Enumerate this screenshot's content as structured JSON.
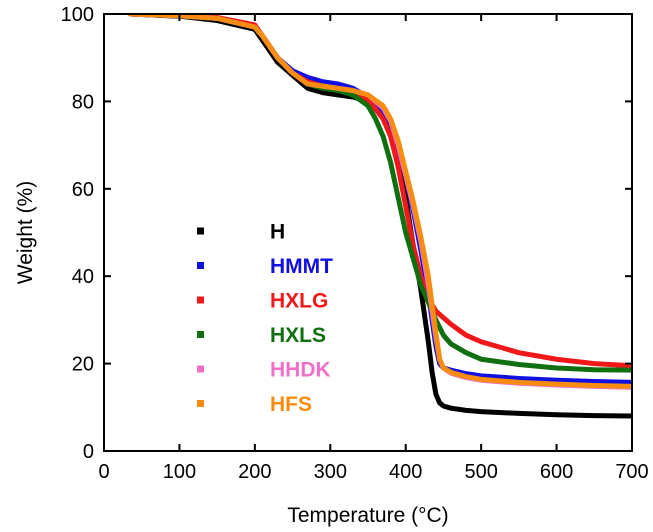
{
  "chart_data": {
    "type": "line",
    "title": "",
    "xlabel": "Temperature (°C)",
    "ylabel": "Weight (%)",
    "xlim": [
      0,
      700
    ],
    "ylim": [
      0,
      100
    ],
    "xticks": [
      0,
      100,
      200,
      300,
      400,
      500,
      600,
      700
    ],
    "yticks": [
      0,
      20,
      40,
      60,
      80,
      100
    ],
    "grid": false,
    "legend_position": "center-left",
    "series": [
      {
        "name": "H",
        "color": "#000000",
        "x": [
          35,
          100,
          150,
          200,
          210,
          230,
          250,
          270,
          290,
          310,
          330,
          350,
          370,
          380,
          390,
          400,
          410,
          420,
          430,
          435,
          440,
          445,
          450,
          460,
          480,
          500,
          550,
          600,
          650,
          700
        ],
        "y": [
          100,
          99.5,
          98.5,
          96.5,
          94,
          89,
          86,
          83,
          82,
          81.5,
          81,
          80,
          77,
          74,
          68,
          58,
          47,
          37,
          25,
          18,
          13,
          11,
          10.3,
          9.8,
          9.3,
          9,
          8.6,
          8.3,
          8.1,
          8
        ]
      },
      {
        "name": "HMMT",
        "color": "#1010e0",
        "x": [
          35,
          100,
          150,
          200,
          210,
          230,
          250,
          270,
          290,
          310,
          330,
          350,
          370,
          380,
          390,
          400,
          410,
          420,
          430,
          440,
          445,
          450,
          460,
          480,
          500,
          550,
          600,
          650,
          700
        ],
        "y": [
          100,
          99.6,
          99,
          97,
          95,
          90,
          87,
          85.5,
          84.5,
          84,
          83,
          81,
          77,
          74,
          69,
          63,
          55,
          46,
          36,
          24,
          20,
          19,
          18.5,
          17.7,
          17.2,
          16.6,
          16.2,
          15.9,
          15.7
        ]
      },
      {
        "name": "HXLG",
        "color": "#f01818",
        "x": [
          35,
          100,
          150,
          200,
          210,
          230,
          250,
          270,
          290,
          310,
          330,
          350,
          370,
          380,
          390,
          400,
          410,
          420,
          430,
          440,
          450,
          460,
          480,
          500,
          550,
          600,
          650,
          700
        ],
        "y": [
          100,
          99.7,
          99.2,
          97.5,
          95,
          90,
          86.5,
          84.5,
          83.5,
          83,
          82,
          80.5,
          76,
          72,
          65,
          56,
          47,
          40,
          35,
          32,
          30.5,
          29,
          26.5,
          25,
          22.5,
          21,
          20,
          19.5
        ]
      },
      {
        "name": "HXLS",
        "color": "#107010",
        "x": [
          35,
          100,
          150,
          200,
          210,
          230,
          250,
          270,
          290,
          310,
          330,
          350,
          360,
          370,
          380,
          390,
          400,
          410,
          420,
          430,
          440,
          450,
          460,
          480,
          500,
          550,
          600,
          650,
          700
        ],
        "y": [
          100,
          99.6,
          99,
          97,
          95,
          90,
          86.5,
          84,
          83,
          82.5,
          81.5,
          79,
          76,
          72,
          66,
          58,
          50,
          44,
          38,
          34,
          30,
          26.5,
          24.5,
          22.5,
          21,
          19.8,
          19,
          18.6,
          18.5
        ]
      },
      {
        "name": "HHDK",
        "color": "#f070c8",
        "x": [
          35,
          100,
          150,
          200,
          210,
          230,
          250,
          270,
          290,
          310,
          330,
          350,
          370,
          380,
          390,
          400,
          410,
          420,
          430,
          440,
          445,
          450,
          460,
          480,
          500,
          550,
          600,
          650,
          700
        ],
        "y": [
          100,
          99.6,
          99,
          97,
          95,
          90,
          86.5,
          84,
          83.5,
          83,
          82.5,
          81.5,
          78.5,
          75.5,
          70,
          63,
          56,
          48,
          38,
          26,
          21,
          19,
          17.8,
          16.8,
          16.2,
          15.5,
          15.1,
          14.8,
          14.6
        ]
      },
      {
        "name": "HFS",
        "color": "#f88c10",
        "x": [
          35,
          100,
          150,
          200,
          210,
          230,
          250,
          270,
          290,
          310,
          330,
          350,
          370,
          380,
          390,
          400,
          410,
          420,
          430,
          440,
          445,
          450,
          460,
          480,
          500,
          550,
          600,
          650,
          700
        ],
        "y": [
          100,
          99.6,
          99,
          97,
          95,
          90,
          86.5,
          84,
          83.5,
          83,
          82.5,
          81.5,
          79,
          76,
          71,
          64,
          57,
          49,
          40,
          27,
          21,
          19,
          18,
          17,
          16.4,
          15.7,
          15.3,
          15,
          14.8
        ]
      }
    ]
  }
}
